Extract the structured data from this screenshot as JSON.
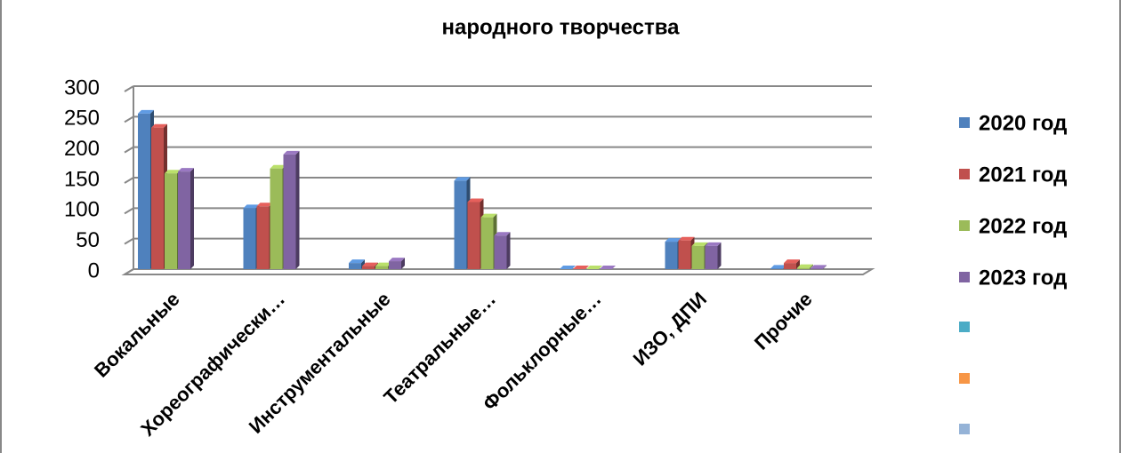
{
  "chart_data": {
    "type": "bar",
    "title": "народного творчества",
    "categories": [
      "Вокальные",
      "Хореографически…",
      "Инструментальные",
      "Театральные…",
      "Фольклорные…",
      "ИЗО, ДПИ",
      "Прочие"
    ],
    "series": [
      {
        "name": "2020 год",
        "color": "#4f81bd",
        "values": [
          255,
          100,
          10,
          145,
          0,
          45,
          1
        ]
      },
      {
        "name": "2021 год",
        "color": "#c0504d",
        "values": [
          232,
          103,
          5,
          110,
          0,
          47,
          10
        ]
      },
      {
        "name": "2022 год",
        "color": "#9bbb59",
        "values": [
          157,
          165,
          5,
          85,
          0,
          38,
          2
        ]
      },
      {
        "name": "2023 год",
        "color": "#8064a2",
        "values": [
          160,
          188,
          13,
          55,
          0,
          38,
          1
        ]
      }
    ],
    "ylim": [
      0,
      300
    ],
    "yticks": [
      0,
      50,
      100,
      150,
      200,
      250,
      300
    ],
    "grid": true
  }
}
